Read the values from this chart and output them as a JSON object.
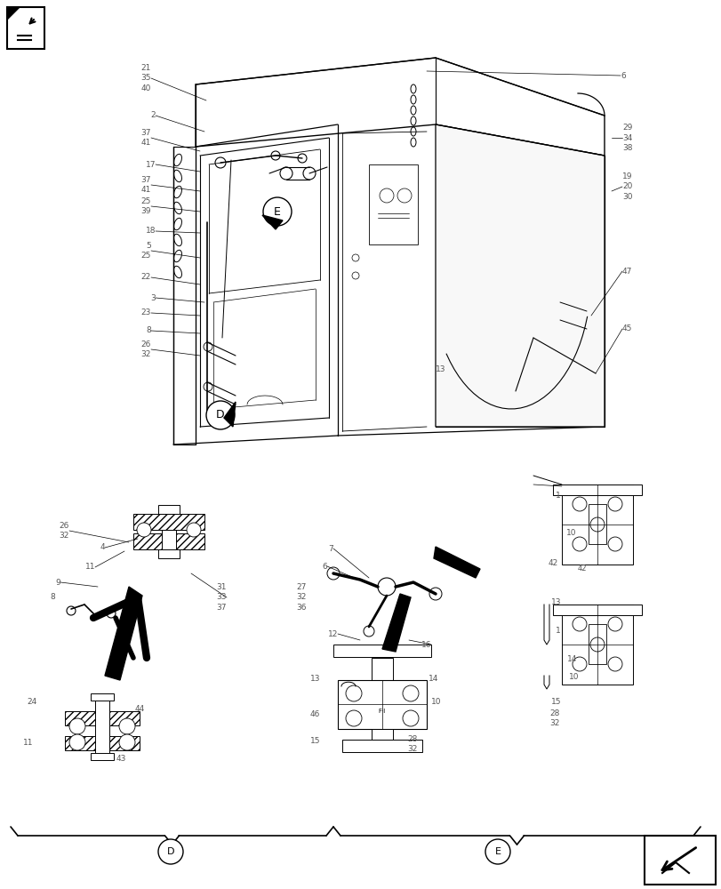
{
  "bg_color": "#ffffff",
  "line_color": "#000000",
  "label_color": "#555555",
  "figsize": [
    8.12,
    10.0
  ],
  "dpi": 100,
  "labels_left": [
    [
      170,
      88,
      "21\n35\n40"
    ],
    [
      175,
      130,
      "2"
    ],
    [
      170,
      155,
      "37\n41"
    ],
    [
      175,
      185,
      "17"
    ],
    [
      170,
      208,
      "37\n41"
    ],
    [
      170,
      232,
      "25\n39"
    ],
    [
      175,
      260,
      "18"
    ],
    [
      170,
      282,
      "5\n25"
    ],
    [
      170,
      312,
      "22"
    ],
    [
      175,
      335,
      "3"
    ],
    [
      170,
      352,
      "23"
    ],
    [
      170,
      372,
      "8"
    ],
    [
      170,
      393,
      "26\n32"
    ]
  ],
  "labels_right": [
    [
      698,
      85,
      "6"
    ],
    [
      700,
      155,
      "29\n34\n38"
    ],
    [
      700,
      210,
      "19\n20\n30"
    ],
    [
      700,
      305,
      "47"
    ],
    [
      700,
      370,
      "45"
    ],
    [
      490,
      415,
      "13"
    ]
  ],
  "labels_d_section": [
    [
      78,
      597,
      "26\n32"
    ],
    [
      118,
      616,
      "4"
    ],
    [
      107,
      638,
      "11"
    ],
    [
      68,
      655,
      "9"
    ],
    [
      62,
      672,
      "8"
    ],
    [
      255,
      672,
      "31\n33\n37"
    ],
    [
      42,
      790,
      "24"
    ],
    [
      163,
      797,
      "44"
    ],
    [
      37,
      835,
      "11"
    ],
    [
      142,
      853,
      "43"
    ]
  ],
  "labels_e_section": [
    [
      375,
      617,
      "7"
    ],
    [
      368,
      637,
      "6"
    ],
    [
      345,
      672,
      "27\n32\n36"
    ],
    [
      380,
      713,
      "12"
    ],
    [
      360,
      763,
      "13"
    ],
    [
      360,
      803,
      "46"
    ],
    [
      360,
      833,
      "15"
    ],
    [
      485,
      725,
      "16"
    ],
    [
      493,
      763,
      "14"
    ],
    [
      496,
      790,
      "10"
    ],
    [
      470,
      837,
      "28\n32"
    ]
  ],
  "labels_er_section": [
    [
      625,
      558,
      "1"
    ],
    [
      637,
      600,
      "10"
    ],
    [
      617,
      633,
      "42"
    ],
    [
      620,
      678,
      "13"
    ],
    [
      625,
      710,
      "1"
    ],
    [
      638,
      742,
      "14"
    ],
    [
      640,
      762,
      "10"
    ],
    [
      620,
      790,
      "15"
    ],
    [
      618,
      808,
      "28\n32"
    ]
  ]
}
